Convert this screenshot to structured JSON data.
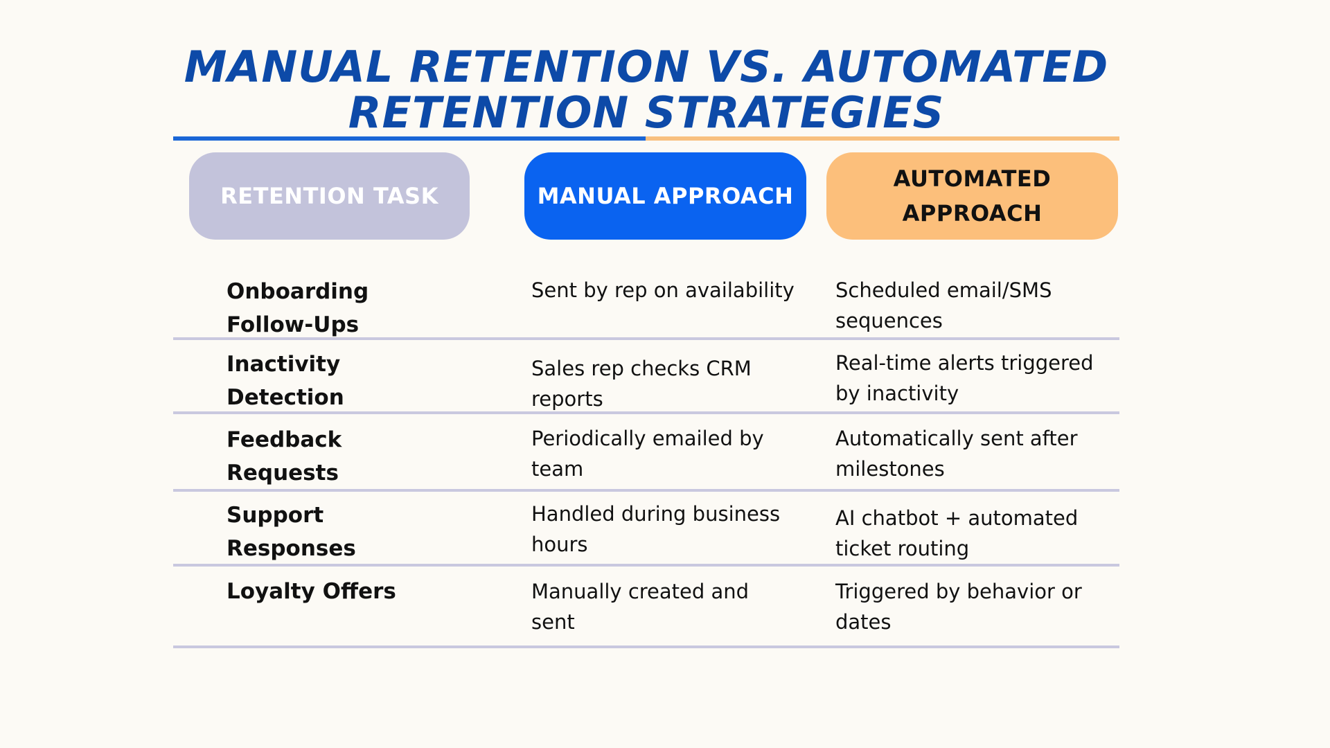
{
  "title": "MANUAL RETENTION VS. AUTOMATED RETENTION STRATEGIES",
  "colors": {
    "background": "#fcfaf5",
    "title": "#0d4aa8",
    "title_line_blue": "#1a66d6",
    "title_line_orange": "#f8c07f",
    "task_header_bg": "#c3c3db",
    "task_header_text": "#ffffff",
    "manual_header_bg": "#0a63f0",
    "manual_header_text": "#ffffff",
    "auto_header_bg": "#fcbf7b",
    "auto_header_text": "#111111",
    "divider": "#c9c8df",
    "body_text": "#111111"
  },
  "headers": {
    "task": "RETENTION TASK",
    "manual": "MANUAL APPROACH",
    "automated": "AUTOMATED APPROACH"
  },
  "rows": [
    {
      "task": "Onboarding Follow-Ups",
      "manual": "Sent by rep on availability",
      "automated": "Scheduled email/SMS sequences"
    },
    {
      "task": "Inactivity Detection",
      "manual": "Sales rep checks CRM reports",
      "automated": "Real-time alerts triggered by inactivity"
    },
    {
      "task": "Feedback Requests",
      "manual": "Periodically emailed by team",
      "automated": "Automatically sent after milestones"
    },
    {
      "task": "Support Responses",
      "manual": "Handled during business hours",
      "automated": "AI chatbot + automated ticket routing"
    },
    {
      "task": "Loyalty Offers",
      "manual": "Manually created and sent",
      "automated": "Triggered by behavior or dates"
    }
  ]
}
